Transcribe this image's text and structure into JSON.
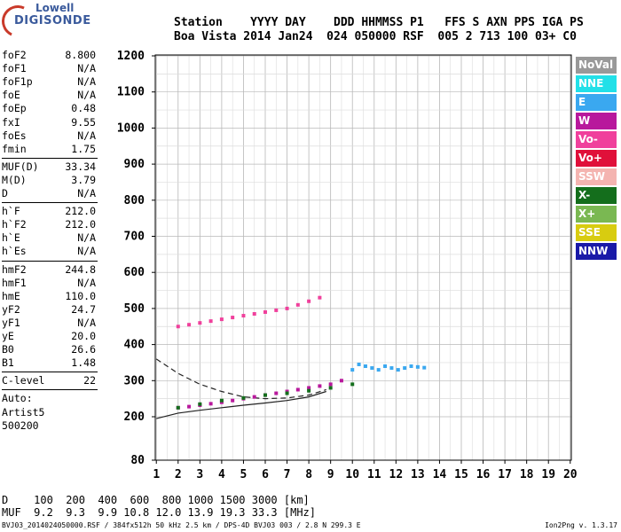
{
  "logo": {
    "line1": "Lowell",
    "line2": "DIGISONDE"
  },
  "header": {
    "row1": "Station    YYYY DAY    DDD HHMMSS P1   FFS S AXN PPS IGA PS",
    "row2": "Boa Vista 2014 Jan24  024 050000 RSF  005 2 713 100 03+ C0"
  },
  "params": {
    "group1": [
      {
        "name": "foF2",
        "value": "8.800"
      },
      {
        "name": "foF1",
        "value": "N/A"
      },
      {
        "name": "foF1p",
        "value": "N/A"
      },
      {
        "name": "foE",
        "value": "N/A"
      },
      {
        "name": "foEp",
        "value": "0.48"
      },
      {
        "name": "fxI",
        "value": "9.55"
      },
      {
        "name": "foEs",
        "value": "N/A"
      },
      {
        "name": "fmin",
        "value": "1.75"
      }
    ],
    "group2": [
      {
        "name": "MUF(D)",
        "value": "33.34"
      },
      {
        "name": "M(D)",
        "value": "3.79"
      },
      {
        "name": "D",
        "value": "N/A"
      }
    ],
    "group3": [
      {
        "name": "h`F",
        "value": "212.0"
      },
      {
        "name": "h`F2",
        "value": "212.0"
      },
      {
        "name": "h`E",
        "value": "N/A"
      },
      {
        "name": "h`Es",
        "value": "N/A"
      }
    ],
    "group4": [
      {
        "name": "hmF2",
        "value": "244.8"
      },
      {
        "name": "hmF1",
        "value": "N/A"
      },
      {
        "name": "hmE",
        "value": "110.0"
      },
      {
        "name": "yF2",
        "value": "24.7"
      },
      {
        "name": "yF1",
        "value": "N/A"
      },
      {
        "name": "yE",
        "value": "20.0"
      },
      {
        "name": "B0",
        "value": "26.6"
      },
      {
        "name": "B1",
        "value": "1.48"
      }
    ],
    "clevel": {
      "name": "C-level",
      "value": "22"
    },
    "auto": [
      "Auto:",
      "Artist5",
      "500200"
    ]
  },
  "legend": [
    {
      "label": "NoVal",
      "color": "#999999"
    },
    {
      "label": "NNE",
      "color": "#22e0e8"
    },
    {
      "label": "E",
      "color": "#3aa8f0"
    },
    {
      "label": "W",
      "color": "#b8189c"
    },
    {
      "label": "Vo-",
      "color": "#f0409c"
    },
    {
      "label": "Vo+",
      "color": "#e0103a"
    },
    {
      "label": "SSW",
      "color": "#f4b4b0"
    },
    {
      "label": "X-",
      "color": "#146e1c"
    },
    {
      "label": "X+",
      "color": "#7ab852"
    },
    {
      "label": "SSE",
      "color": "#d8cc10"
    },
    {
      "label": "NNW",
      "color": "#1a1aa8"
    }
  ],
  "bottom": {
    "row1": "D    100  200  400  600  800 1000 1500 3000 [km]",
    "row2": "MUF  9.2  9.3  9.9 10.8 12.0 13.9 19.3 33.3 [MHz]"
  },
  "footer": "BVJ03_2014024050000.RSF / 384fx512h 50 kHz 2.5 km / DPS-4D BVJ03 003 / 2.8 N 299.3 E",
  "version": "Ion2Png v. 1.3.17",
  "chart_data": {
    "type": "scatter",
    "xlabel": "",
    "ylabel": "",
    "xlim": [
      0.95,
      20.05
    ],
    "ylim": [
      80,
      1200
    ],
    "xticks": [
      1,
      2,
      3,
      4,
      5,
      6,
      7,
      8,
      9,
      10,
      11,
      12,
      13,
      14,
      15,
      16,
      17,
      18,
      19,
      20
    ],
    "yticks": [
      80,
      200,
      300,
      400,
      500,
      600,
      700,
      800,
      900,
      1000,
      1100,
      1200
    ],
    "grid": true,
    "series": [
      {
        "name": "E",
        "color": "#3aa8f0",
        "x": [
          10,
          10.3,
          10.6,
          10.9,
          11.2,
          11.5,
          11.8,
          12.1,
          12.4,
          12.7,
          13,
          13.3
        ],
        "y": [
          330,
          345,
          340,
          335,
          330,
          340,
          335,
          330,
          335,
          340,
          338,
          336
        ]
      },
      {
        "name": "W",
        "color": "#b8189c",
        "x": [
          2,
          2.5,
          3,
          3.5,
          4,
          4.5,
          5,
          5.5,
          6,
          6.5,
          7,
          7.5,
          8,
          8.5,
          9,
          9.5
        ],
        "y": [
          225,
          228,
          232,
          236,
          240,
          245,
          250,
          255,
          260,
          265,
          270,
          275,
          280,
          285,
          290,
          300
        ]
      },
      {
        "name": "Vo-",
        "color": "#f0409c",
        "x": [
          2,
          2.5,
          3,
          3.5,
          4,
          4.5,
          5,
          5.5,
          6,
          6.5,
          7,
          7.5,
          8,
          8.5
        ],
        "y": [
          450,
          455,
          460,
          465,
          470,
          475,
          480,
          485,
          490,
          495,
          500,
          510,
          520,
          530
        ]
      },
      {
        "name": "X-",
        "color": "#146e1c",
        "x": [
          2,
          3,
          4,
          5,
          6,
          7,
          8,
          9,
          10
        ],
        "y": [
          225,
          235,
          245,
          252,
          260,
          265,
          272,
          280,
          290
        ]
      }
    ],
    "traces": [
      {
        "name": "profile",
        "style": "solid",
        "x": [
          1,
          2,
          3,
          4,
          5,
          6,
          7,
          8,
          8.8
        ],
        "y": [
          195,
          210,
          218,
          225,
          232,
          238,
          245,
          255,
          270
        ]
      },
      {
        "name": "virtual",
        "style": "dashed",
        "x": [
          1,
          2,
          3,
          4,
          5,
          6,
          7,
          8,
          8.8
        ],
        "y": [
          360,
          320,
          290,
          270,
          255,
          250,
          252,
          260,
          275
        ]
      }
    ]
  }
}
